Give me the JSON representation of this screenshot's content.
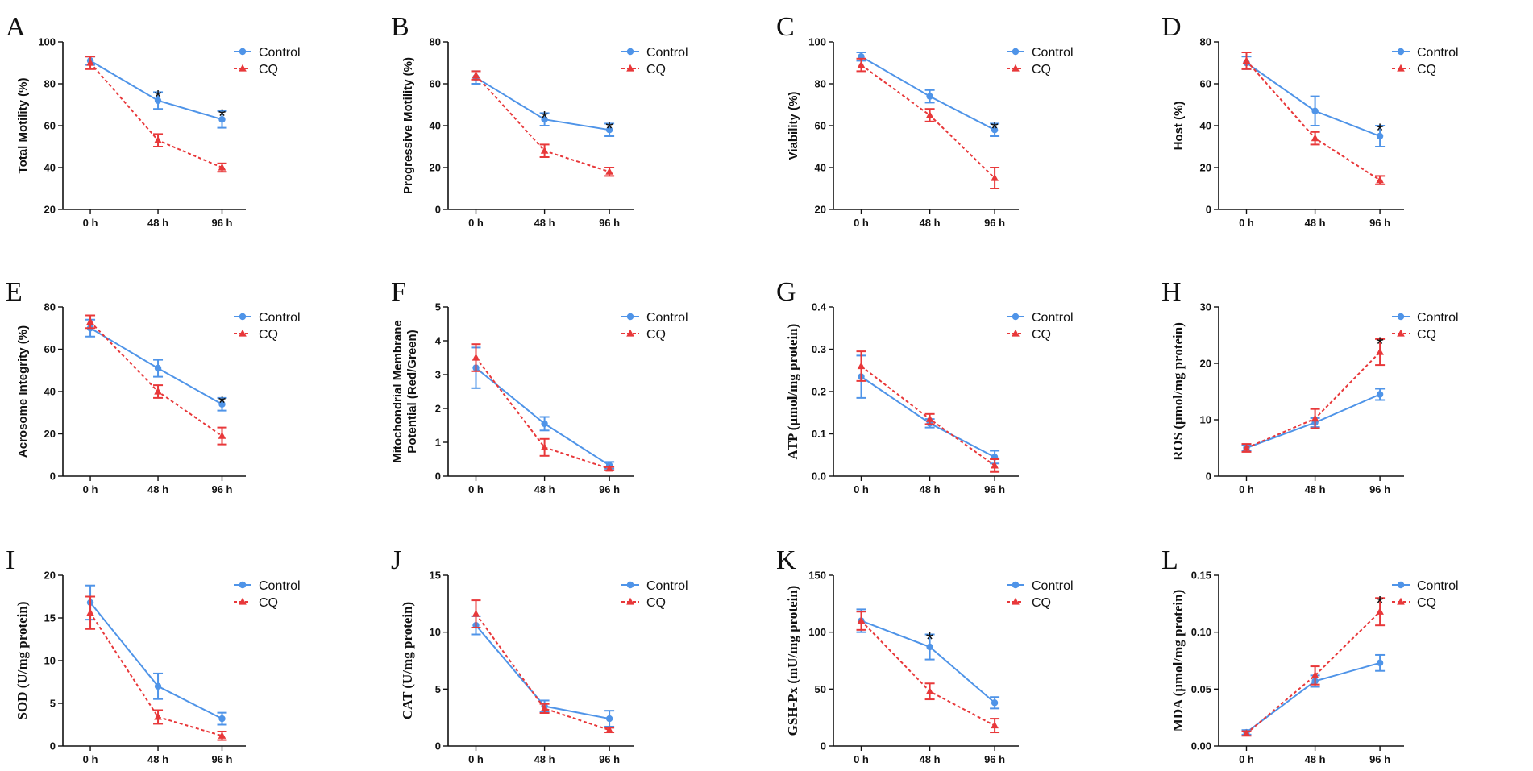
{
  "figure": {
    "background": "#ffffff"
  },
  "colors": {
    "control": "#4f94e8",
    "cq": "#e8383a",
    "axis": "#111111"
  },
  "legend": {
    "control": "Control",
    "cq": "CQ"
  },
  "chart_data": [
    {
      "id": "A",
      "type": "line",
      "panel_label": "A",
      "ylabel": "Total Motility (%)",
      "ylabel_font": "sans",
      "categories": [
        "0 h",
        "48 h",
        "96 h"
      ],
      "ylim": [
        20,
        100
      ],
      "yticks": [
        20,
        40,
        60,
        80,
        100
      ],
      "ytick_labels": [
        "20",
        "40",
        "60",
        "80",
        "100"
      ],
      "series": [
        {
          "name": "Control",
          "values": [
            91,
            72,
            63
          ],
          "errors": [
            2,
            4,
            4
          ]
        },
        {
          "name": "CQ",
          "values": [
            90,
            53,
            40
          ],
          "errors": [
            3,
            3,
            2
          ]
        }
      ],
      "significance": [
        {
          "category": "48 h",
          "label": "*"
        },
        {
          "category": "96 h",
          "label": "*"
        }
      ]
    },
    {
      "id": "B",
      "type": "line",
      "panel_label": "B",
      "ylabel": "Progressive Motility (%)",
      "ylabel_font": "sans",
      "categories": [
        "0 h",
        "48 h",
        "96 h"
      ],
      "ylim": [
        0,
        80
      ],
      "yticks": [
        0,
        20,
        40,
        60,
        80
      ],
      "ytick_labels": [
        "0",
        "20",
        "40",
        "60",
        "80"
      ],
      "series": [
        {
          "name": "Control",
          "values": [
            63,
            43,
            38
          ],
          "errors": [
            3,
            3,
            3
          ]
        },
        {
          "name": "CQ",
          "values": [
            64,
            28,
            18
          ],
          "errors": [
            2,
            3,
            2
          ]
        }
      ],
      "significance": [
        {
          "category": "48 h",
          "label": "*"
        },
        {
          "category": "96 h",
          "label": "*"
        }
      ]
    },
    {
      "id": "C",
      "type": "line",
      "panel_label": "C",
      "ylabel": "Viability (%)",
      "ylabel_font": "sans",
      "categories": [
        "0 h",
        "48 h",
        "96 h"
      ],
      "ylim": [
        20,
        100
      ],
      "yticks": [
        20,
        40,
        60,
        80,
        100
      ],
      "ytick_labels": [
        "20",
        "40",
        "60",
        "80",
        "100"
      ],
      "series": [
        {
          "name": "Control",
          "values": [
            93,
            74,
            58
          ],
          "errors": [
            2,
            3,
            3
          ]
        },
        {
          "name": "CQ",
          "values": [
            89,
            65,
            35
          ],
          "errors": [
            3,
            3,
            5
          ]
        }
      ],
      "significance": [
        {
          "category": "96 h",
          "label": "*"
        }
      ]
    },
    {
      "id": "D",
      "type": "line",
      "panel_label": "D",
      "ylabel": "Host (%)",
      "ylabel_font": "sans",
      "categories": [
        "0 h",
        "48 h",
        "96 h"
      ],
      "ylim": [
        0,
        80
      ],
      "yticks": [
        0,
        20,
        40,
        60,
        80
      ],
      "ytick_labels": [
        "0",
        "20",
        "40",
        "60",
        "80"
      ],
      "series": [
        {
          "name": "Control",
          "values": [
            70,
            47,
            35
          ],
          "errors": [
            3,
            7,
            5
          ]
        },
        {
          "name": "CQ",
          "values": [
            71,
            34,
            14
          ],
          "errors": [
            4,
            3,
            2
          ]
        }
      ],
      "significance": [
        {
          "category": "96 h",
          "label": "*"
        }
      ]
    },
    {
      "id": "E",
      "type": "line",
      "panel_label": "E",
      "ylabel": "Acrosome Integrity (%)",
      "ylabel_font": "sans",
      "categories": [
        "0 h",
        "48 h",
        "96 h"
      ],
      "ylim": [
        0,
        80
      ],
      "yticks": [
        0,
        20,
        40,
        60,
        80
      ],
      "ytick_labels": [
        "0",
        "20",
        "40",
        "60",
        "80"
      ],
      "series": [
        {
          "name": "Control",
          "values": [
            70,
            51,
            34
          ],
          "errors": [
            4,
            4,
            3
          ]
        },
        {
          "name": "CQ",
          "values": [
            73,
            40,
            19
          ],
          "errors": [
            3,
            3,
            4
          ]
        }
      ],
      "significance": [
        {
          "category": "96 h",
          "label": "*"
        }
      ]
    },
    {
      "id": "F",
      "type": "line",
      "panel_label": "F",
      "ylabel": "Mitochondrial Membrane",
      "ylabel2": "Potential (Red/Green)",
      "ylabel_font": "sans",
      "categories": [
        "0 h",
        "48 h",
        "96 h"
      ],
      "ylim": [
        0,
        5
      ],
      "yticks": [
        0,
        1,
        2,
        3,
        4,
        5
      ],
      "ytick_labels": [
        "0",
        "1",
        "2",
        "3",
        "4",
        "5"
      ],
      "series": [
        {
          "name": "Control",
          "values": [
            3.2,
            1.55,
            0.32
          ],
          "errors": [
            0.6,
            0.2,
            0.1
          ]
        },
        {
          "name": "CQ",
          "values": [
            3.5,
            0.85,
            0.22
          ],
          "errors": [
            0.4,
            0.25,
            0.05
          ]
        }
      ],
      "significance": []
    },
    {
      "id": "G",
      "type": "line",
      "panel_label": "G",
      "ylabel": "ATP (μmol/mg protein)",
      "ylabel_font": "serif",
      "categories": [
        "0 h",
        "48 h",
        "96 h"
      ],
      "ylim": [
        0,
        0.4
      ],
      "yticks": [
        0,
        0.1,
        0.2,
        0.3,
        0.4
      ],
      "ytick_labels": [
        "0.0",
        "0.1",
        "0.2",
        "0.3",
        "0.4"
      ],
      "series": [
        {
          "name": "Control",
          "values": [
            0.235,
            0.125,
            0.045
          ],
          "errors": [
            0.05,
            0.01,
            0.015
          ]
        },
        {
          "name": "CQ",
          "values": [
            0.26,
            0.135,
            0.025
          ],
          "errors": [
            0.035,
            0.012,
            0.015
          ]
        }
      ],
      "significance": []
    },
    {
      "id": "H",
      "type": "line",
      "panel_label": "H",
      "ylabel": "ROS (μmol/mg protein)",
      "ylabel_font": "serif",
      "categories": [
        "0 h",
        "48 h",
        "96 h"
      ],
      "ylim": [
        0,
        30
      ],
      "yticks": [
        0,
        10,
        20,
        30
      ],
      "ytick_labels": [
        "0",
        "10",
        "20",
        "30"
      ],
      "series": [
        {
          "name": "Control",
          "values": [
            5,
            9.5,
            14.5
          ],
          "errors": [
            0.5,
            0.8,
            1
          ]
        },
        {
          "name": "CQ",
          "values": [
            5,
            10.2,
            22
          ],
          "errors": [
            0.7,
            1.7,
            2.3
          ]
        }
      ],
      "significance": [
        {
          "category": "96 h",
          "label": "*"
        }
      ]
    },
    {
      "id": "I",
      "type": "line",
      "panel_label": "I",
      "ylabel": "SOD (U/mg protein)",
      "ylabel_font": "serif",
      "categories": [
        "0 h",
        "48 h",
        "96 h"
      ],
      "ylim": [
        0,
        20
      ],
      "yticks": [
        0,
        5,
        10,
        15,
        20
      ],
      "ytick_labels": [
        "0",
        "5",
        "10",
        "15",
        "20"
      ],
      "series": [
        {
          "name": "Control",
          "values": [
            16.8,
            7,
            3.2
          ],
          "errors": [
            2,
            1.5,
            0.7
          ]
        },
        {
          "name": "CQ",
          "values": [
            15.6,
            3.4,
            1.2
          ],
          "errors": [
            1.9,
            0.8,
            0.5
          ]
        }
      ],
      "significance": []
    },
    {
      "id": "J",
      "type": "line",
      "panel_label": "J",
      "ylabel": "CAT (U/mg protein)",
      "ylabel_font": "serif",
      "categories": [
        "0 h",
        "48 h",
        "96 h"
      ],
      "ylim": [
        0,
        15
      ],
      "yticks": [
        0,
        5,
        10,
        15
      ],
      "ytick_labels": [
        "0",
        "5",
        "10",
        "15"
      ],
      "series": [
        {
          "name": "Control",
          "values": [
            10.6,
            3.5,
            2.4
          ],
          "errors": [
            0.8,
            0.5,
            0.7
          ]
        },
        {
          "name": "CQ",
          "values": [
            11.6,
            3.3,
            1.4
          ],
          "errors": [
            1.2,
            0.4,
            0.2
          ]
        }
      ],
      "significance": []
    },
    {
      "id": "K",
      "type": "line",
      "panel_label": "K",
      "ylabel": "GSH-Px (mU/mg protein)",
      "ylabel_font": "serif",
      "categories": [
        "0 h",
        "48 h",
        "96 h"
      ],
      "ylim": [
        0,
        150
      ],
      "yticks": [
        0,
        50,
        100,
        150
      ],
      "ytick_labels": [
        "0",
        "50",
        "100",
        "150"
      ],
      "series": [
        {
          "name": "Control",
          "values": [
            110,
            87,
            38
          ],
          "errors": [
            10,
            11,
            5
          ]
        },
        {
          "name": "CQ",
          "values": [
            110,
            48,
            18
          ],
          "errors": [
            8,
            7,
            6
          ]
        }
      ],
      "significance": [
        {
          "category": "48 h",
          "label": "*"
        }
      ]
    },
    {
      "id": "L",
      "type": "line",
      "panel_label": "L",
      "ylabel": "MDA (μmol/mg protein)",
      "ylabel_font": "serif",
      "categories": [
        "0 h",
        "48 h",
        "96 h"
      ],
      "ylim": [
        0,
        0.15
      ],
      "yticks": [
        0,
        0.05,
        0.1,
        0.15
      ],
      "ytick_labels": [
        "0.00",
        "0.05",
        "0.10",
        "0.15"
      ],
      "series": [
        {
          "name": "Control",
          "values": [
            0.012,
            0.057,
            0.073
          ],
          "errors": [
            0.002,
            0.005,
            0.007
          ]
        },
        {
          "name": "CQ",
          "values": [
            0.011,
            0.062,
            0.118
          ],
          "errors": [
            0.002,
            0.008,
            0.012
          ]
        }
      ],
      "significance": [
        {
          "category": "96 h",
          "label": "*"
        }
      ]
    }
  ]
}
